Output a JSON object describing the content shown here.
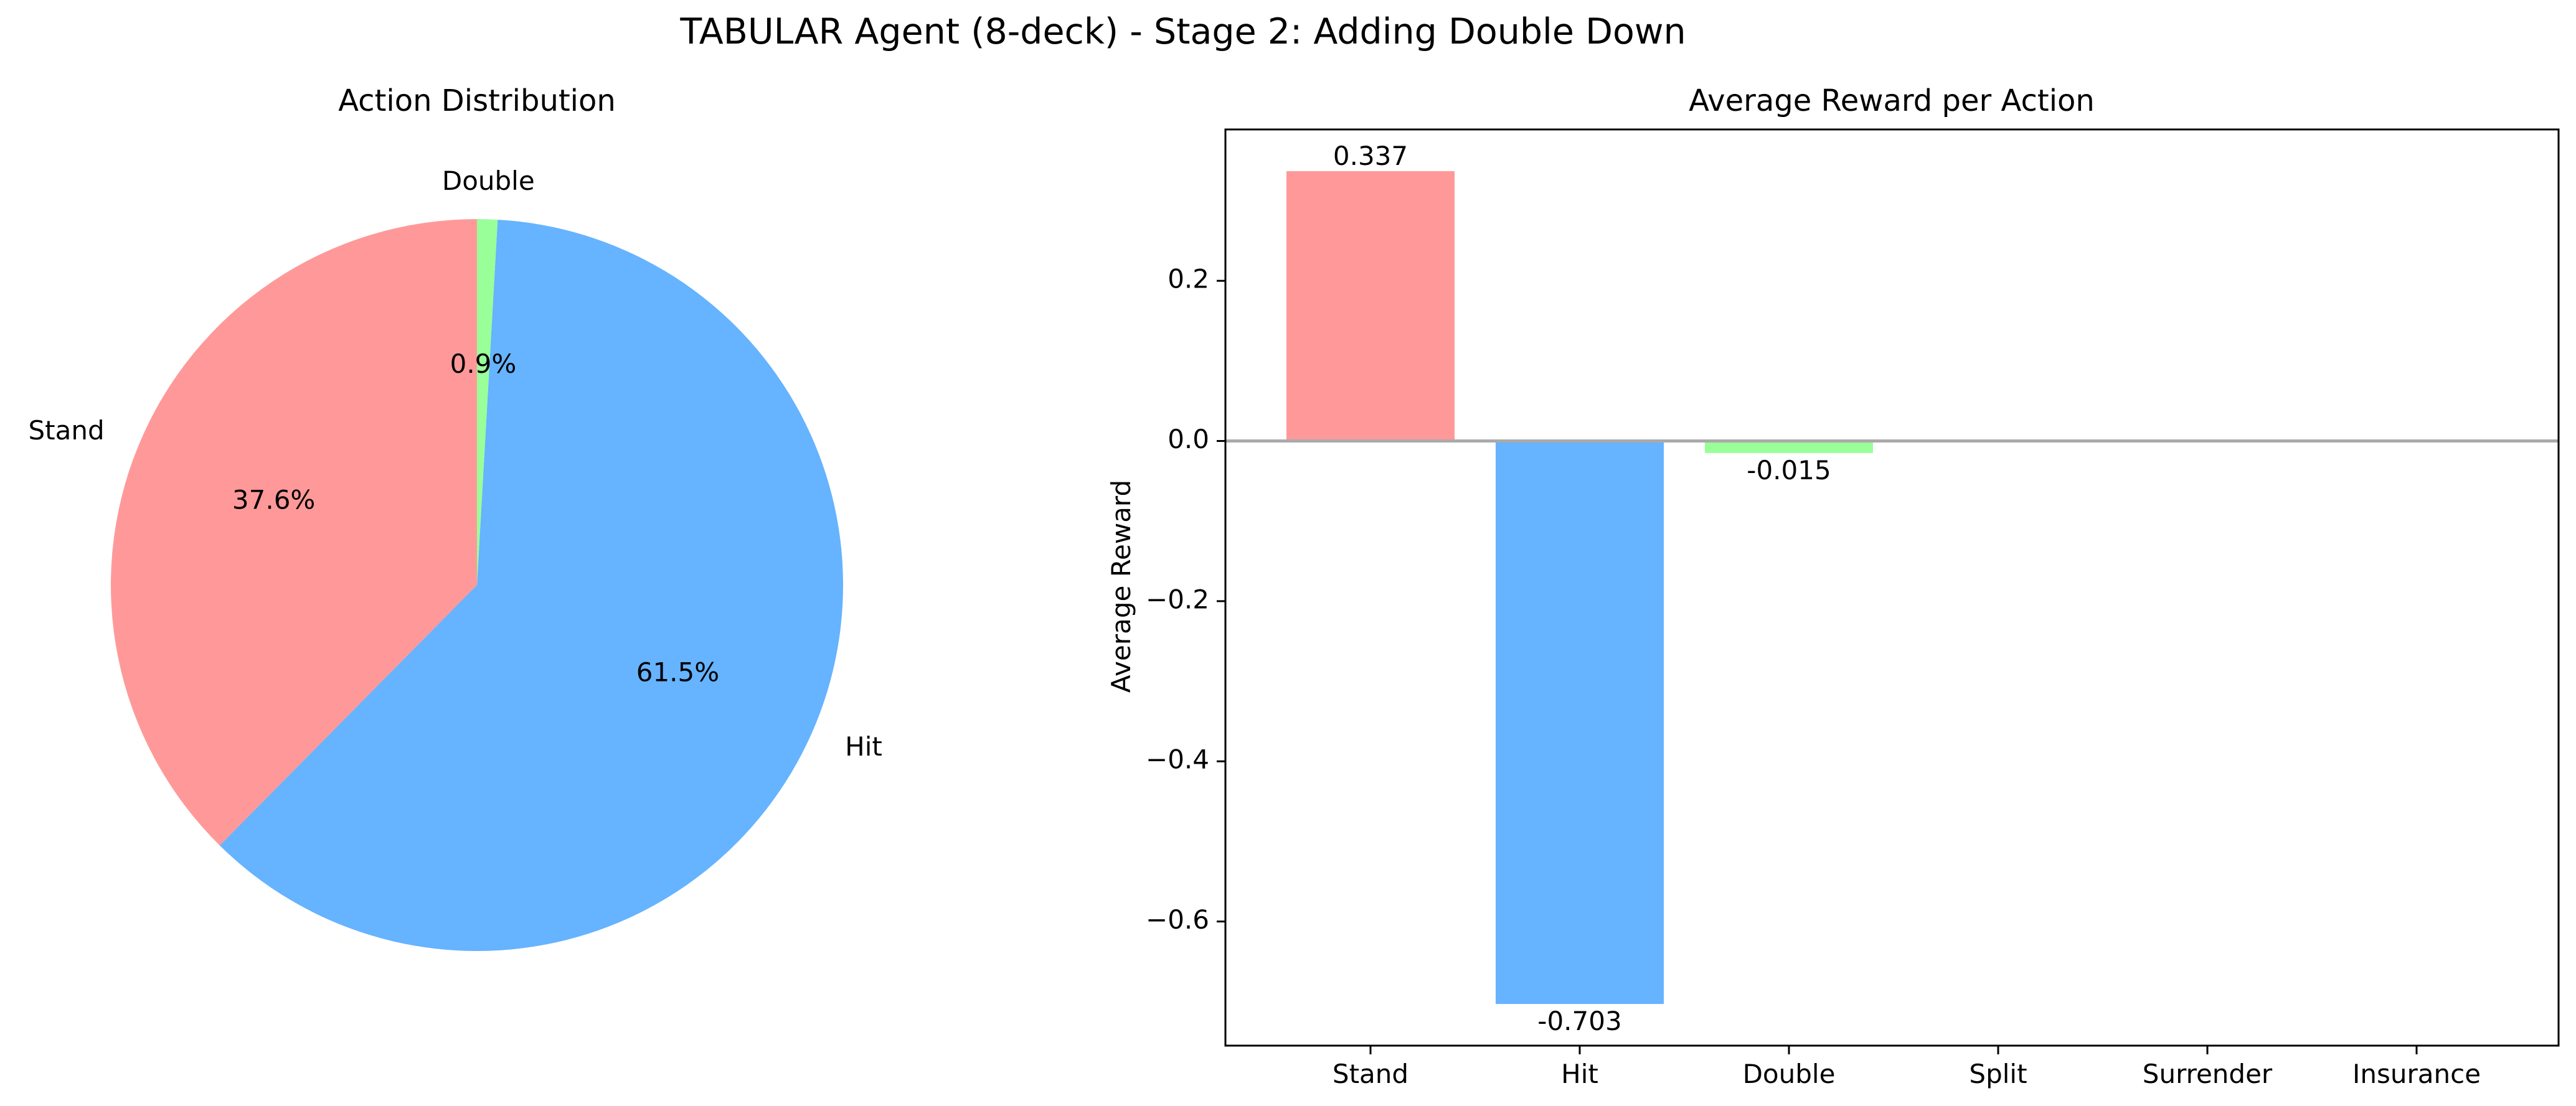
{
  "figure": {
    "title": "TABULAR Agent (8-deck) - Stage 2: Adding Double Down"
  },
  "chart_data": [
    {
      "type": "pie",
      "title": "Action Distribution",
      "labels": [
        "Stand",
        "Hit",
        "Double"
      ],
      "values": [
        37.6,
        61.5,
        0.9
      ],
      "pct_labels": [
        "37.6%",
        "61.5%",
        "0.9%"
      ],
      "colors": [
        "#ff9999",
        "#66b3ff",
        "#99ff99"
      ],
      "start_angle_deg": 90,
      "direction": "counterclockwise"
    },
    {
      "type": "bar",
      "title": "Average Reward per Action",
      "xlabel": "",
      "ylabel": "Average Reward",
      "categories": [
        "Stand",
        "Hit",
        "Double",
        "Split",
        "Surrender",
        "Insurance"
      ],
      "values": [
        0.337,
        -0.703,
        -0.015,
        0,
        0,
        0
      ],
      "value_labels": [
        "0.337",
        "-0.703",
        "-0.015",
        "",
        "",
        ""
      ],
      "colors": [
        "#ff9999",
        "#66b3ff",
        "#99ff99",
        "#ffcc99",
        "#ff99cc",
        "#c2c2f0"
      ],
      "ylim": [
        -0.755,
        0.389
      ],
      "yticks": [
        -0.6,
        -0.4,
        -0.2,
        0.0,
        0.2
      ],
      "ytick_labels": [
        "−0.6",
        "−0.4",
        "−0.2",
        "0.0",
        "0.2"
      ],
      "zero_line_color": "#aaaaaa"
    }
  ]
}
